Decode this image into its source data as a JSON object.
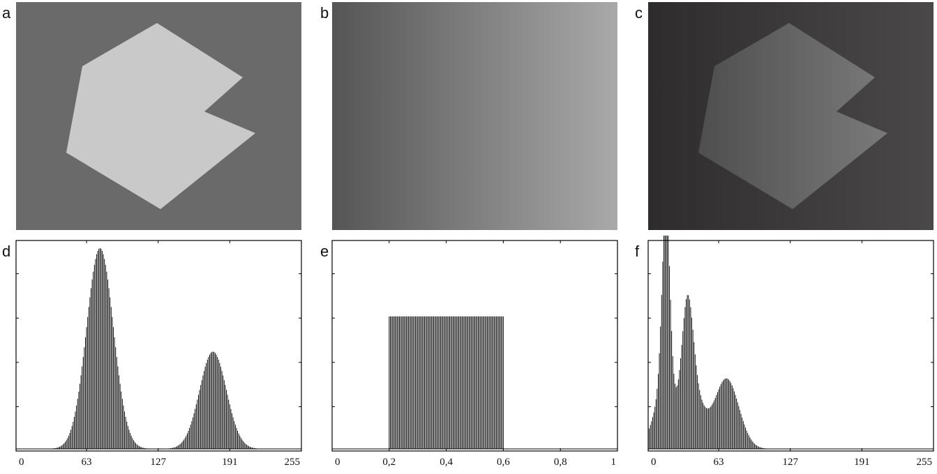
{
  "panels": {
    "a": {
      "label": "a"
    },
    "b": {
      "label": "b"
    },
    "c": {
      "label": "c"
    },
    "d": {
      "label": "d"
    },
    "e": {
      "label": "e"
    },
    "f": {
      "label": "f"
    }
  },
  "images": {
    "a": {
      "background": "#6a6a6a",
      "shape_fill": "#c9c9c9"
    },
    "b": {
      "gradient_start": "#555555",
      "gradient_end": "#a9a9a9"
    },
    "c": {
      "bg_left": "#2e2c2c",
      "bg_right": "#4a4848",
      "shape_left": "#4f4e4e",
      "shape_right": "#7a7a7a"
    }
  },
  "chart_data": [
    {
      "id": "d",
      "type": "bar",
      "xlim": [
        0,
        255
      ],
      "xticks": [
        0,
        63,
        127,
        191,
        255
      ],
      "xtick_labels": [
        "0",
        "63",
        "127",
        "191",
        "255"
      ],
      "y_ticks_unlabeled": 4,
      "peaks": [
        {
          "center": 75,
          "sigma": 12,
          "height": 0.97
        },
        {
          "center": 176,
          "sigma": 12,
          "height": 0.47
        }
      ]
    },
    {
      "id": "e",
      "type": "bar",
      "xlim": [
        0,
        1
      ],
      "xticks": [
        0,
        0.2,
        0.4,
        0.6,
        0.8,
        1
      ],
      "xtick_labels": [
        "0",
        "0,2",
        "0,4",
        "0,6",
        "0,8",
        "1"
      ],
      "y_ticks_unlabeled": 4,
      "uniform_range": [
        0.2,
        0.6
      ],
      "uniform_height": 0.64
    },
    {
      "id": "f",
      "type": "bar",
      "xlim": [
        0,
        255
      ],
      "xticks": [
        0,
        63,
        127,
        191,
        255
      ],
      "xtick_labels": [
        "0",
        "63",
        "127",
        "191",
        "255"
      ],
      "y_ticks_unlabeled": 4,
      "peaks": [
        {
          "center": 16,
          "sigma": 3.5,
          "height": 0.9
        },
        {
          "center": 14,
          "sigma": 9,
          "height": 0.28
        },
        {
          "center": 35,
          "sigma": 5,
          "height": 0.5
        },
        {
          "center": 40,
          "sigma": 9,
          "height": 0.26
        },
        {
          "center": 70,
          "sigma": 11,
          "height": 0.34
        }
      ]
    }
  ]
}
